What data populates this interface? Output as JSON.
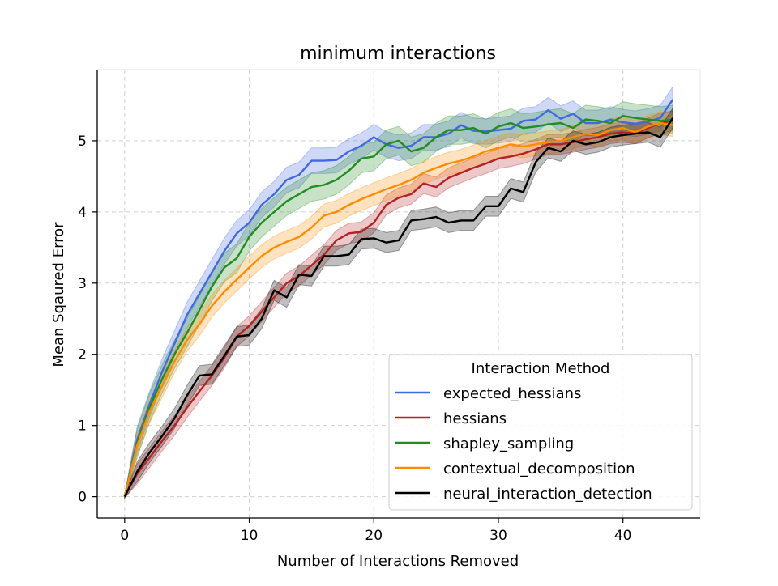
{
  "chart_data": {
    "type": "line",
    "title": "minimum interactions",
    "xlabel": "Number of Interactions Removed",
    "ylabel": "Mean Sqaured Error",
    "xlim": [
      -2.2,
      46.2
    ],
    "ylim": [
      -0.3,
      6.0
    ],
    "xticks": [
      0,
      10,
      20,
      30,
      40
    ],
    "yticks": [
      0,
      1,
      2,
      3,
      4,
      5
    ],
    "grid": true,
    "legend": {
      "title": "Interaction Method",
      "placement": "lower-right"
    },
    "x": [
      0,
      1,
      2,
      3,
      4,
      5,
      6,
      7,
      8,
      9,
      10,
      11,
      12,
      13,
      14,
      15,
      16,
      17,
      18,
      19,
      20,
      21,
      22,
      23,
      24,
      25,
      26,
      27,
      28,
      29,
      30,
      31,
      32,
      33,
      34,
      35,
      36,
      37,
      38,
      39,
      40,
      41,
      42,
      43,
      44
    ],
    "series": [
      {
        "name": "expected_hessians",
        "color": "#4169e1",
        "values": [
          0.0,
          0.8,
          1.3,
          1.75,
          2.15,
          2.55,
          2.85,
          3.15,
          3.45,
          3.7,
          3.85,
          4.1,
          4.25,
          4.45,
          4.52,
          4.72,
          4.72,
          4.73,
          4.85,
          4.93,
          5.05,
          4.95,
          4.9,
          4.93,
          5.05,
          5.05,
          5.1,
          5.22,
          5.14,
          5.13,
          5.15,
          5.17,
          5.28,
          5.3,
          5.43,
          5.31,
          5.38,
          5.25,
          5.25,
          5.3,
          5.26,
          5.24,
          5.27,
          5.32,
          5.58
        ],
        "band": 0.18
      },
      {
        "name": "hessians",
        "color": "#b22222",
        "values": [
          0.0,
          0.32,
          0.55,
          0.78,
          1.0,
          1.25,
          1.48,
          1.7,
          1.95,
          2.25,
          2.4,
          2.6,
          2.8,
          3.0,
          3.1,
          3.25,
          3.4,
          3.6,
          3.7,
          3.72,
          3.85,
          4.1,
          4.2,
          4.25,
          4.4,
          4.35,
          4.48,
          4.55,
          4.62,
          4.68,
          4.75,
          4.78,
          4.82,
          4.88,
          4.95,
          4.95,
          4.98,
          5.02,
          5.05,
          5.1,
          5.12,
          5.1,
          5.18,
          5.25,
          5.28
        ],
        "band": 0.14
      },
      {
        "name": "shapley_sampling",
        "color": "#228b22",
        "values": [
          0.0,
          0.75,
          1.25,
          1.65,
          2.0,
          2.3,
          2.62,
          2.95,
          3.22,
          3.35,
          3.65,
          3.85,
          4.0,
          4.15,
          4.25,
          4.35,
          4.38,
          4.45,
          4.58,
          4.75,
          4.78,
          4.95,
          5.0,
          4.85,
          4.9,
          5.05,
          5.15,
          5.15,
          5.18,
          5.1,
          5.2,
          5.25,
          5.18,
          5.2,
          5.23,
          5.25,
          5.18,
          5.3,
          5.28,
          5.25,
          5.35,
          5.32,
          5.3,
          5.28,
          5.3
        ],
        "band": 0.2
      },
      {
        "name": "contextual_decomposition",
        "color": "#ff8c00",
        "values": [
          0.0,
          0.72,
          1.2,
          1.55,
          1.9,
          2.2,
          2.42,
          2.68,
          2.88,
          3.05,
          3.22,
          3.38,
          3.5,
          3.58,
          3.65,
          3.78,
          3.95,
          4.0,
          4.1,
          4.18,
          4.25,
          4.32,
          4.38,
          4.45,
          4.55,
          4.62,
          4.68,
          4.72,
          4.78,
          4.85,
          4.9,
          4.95,
          4.92,
          4.95,
          4.98,
          5.0,
          5.05,
          5.1,
          5.08,
          5.15,
          5.18,
          5.12,
          5.2,
          5.25,
          5.22
        ],
        "band": 0.16
      },
      {
        "name": "neural_interaction_detection",
        "color": "#000000",
        "values": [
          0.0,
          0.35,
          0.62,
          0.85,
          1.1,
          1.42,
          1.7,
          1.72,
          1.98,
          2.25,
          2.27,
          2.5,
          2.9,
          2.8,
          3.12,
          3.1,
          3.38,
          3.38,
          3.4,
          3.62,
          3.63,
          3.57,
          3.6,
          3.88,
          3.9,
          3.93,
          3.85,
          3.88,
          3.88,
          4.08,
          4.08,
          4.33,
          4.28,
          4.7,
          4.9,
          4.85,
          5.0,
          4.95,
          4.98,
          5.05,
          5.08,
          5.1,
          5.12,
          5.05,
          5.32
        ],
        "band": 0.14
      }
    ]
  }
}
